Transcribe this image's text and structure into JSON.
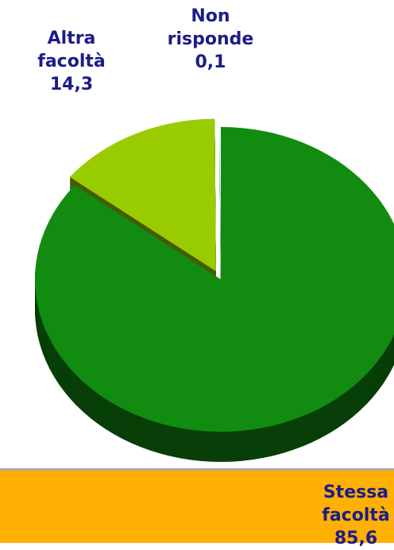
{
  "chart_data": {
    "type": "pie3d",
    "categories": [
      "Stessa facoltà",
      "Altra facoltà",
      "Non risponde"
    ],
    "values": [
      85.6,
      14.3,
      0.1
    ],
    "value_labels": [
      "85,6",
      "14,3",
      "0,1"
    ],
    "colors": [
      "#118c11",
      "#99cc00",
      "#ffffff"
    ]
  }
}
